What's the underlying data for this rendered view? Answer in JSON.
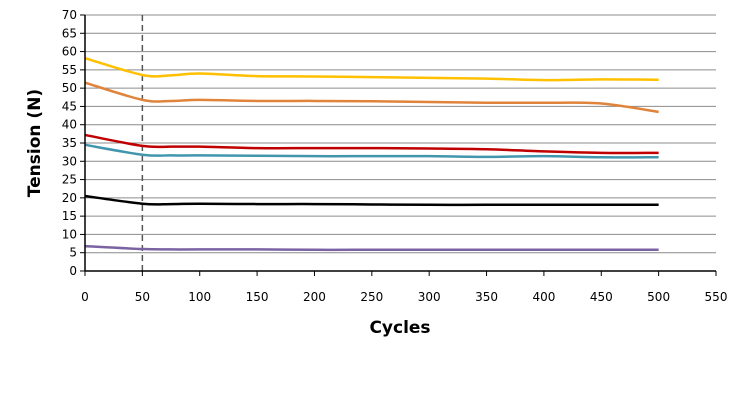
{
  "chart_data": {
    "type": "line",
    "title": "",
    "xlabel": "Cycles",
    "ylabel": "Tension (N)",
    "xlim": [
      0,
      550
    ],
    "ylim": [
      0,
      70
    ],
    "xticks": [
      0,
      50,
      100,
      150,
      200,
      250,
      300,
      350,
      400,
      450,
      500,
      550
    ],
    "yticks": [
      0,
      5,
      10,
      15,
      20,
      25,
      30,
      35,
      40,
      45,
      50,
      55,
      60,
      65,
      70
    ],
    "grid": "horizontal",
    "reference_line": {
      "x": 50,
      "style": "dashed"
    },
    "x": [
      0,
      50,
      75,
      100,
      150,
      200,
      250,
      300,
      350,
      400,
      450,
      500
    ],
    "series": [
      {
        "name": "yellow",
        "color": "#FFC000",
        "values": [
          58.2,
          53.6,
          53.5,
          54.0,
          53.3,
          53.2,
          53.0,
          52.8,
          52.6,
          52.2,
          52.4,
          52.3
        ]
      },
      {
        "name": "orange",
        "color": "#E0843C",
        "values": [
          51.5,
          46.8,
          46.5,
          46.8,
          46.5,
          46.5,
          46.4,
          46.2,
          46.0,
          46.0,
          45.8,
          43.5
        ]
      },
      {
        "name": "red",
        "color": "#C00000",
        "values": [
          37.2,
          34.2,
          34.0,
          34.0,
          33.6,
          33.6,
          33.6,
          33.5,
          33.3,
          32.7,
          32.3,
          32.3
        ]
      },
      {
        "name": "teal",
        "color": "#4196AE",
        "values": [
          34.5,
          31.8,
          31.6,
          31.6,
          31.5,
          31.4,
          31.4,
          31.4,
          31.2,
          31.4,
          31.1,
          31.1
        ]
      },
      {
        "name": "black",
        "color": "#000000",
        "values": [
          20.5,
          18.4,
          18.3,
          18.4,
          18.3,
          18.3,
          18.2,
          18.1,
          18.1,
          18.1,
          18.1,
          18.1
        ]
      },
      {
        "name": "purple",
        "color": "#7B62A3",
        "values": [
          6.8,
          6.0,
          5.9,
          5.9,
          5.9,
          5.8,
          5.8,
          5.8,
          5.8,
          5.8,
          5.8,
          5.8
        ]
      }
    ]
  }
}
